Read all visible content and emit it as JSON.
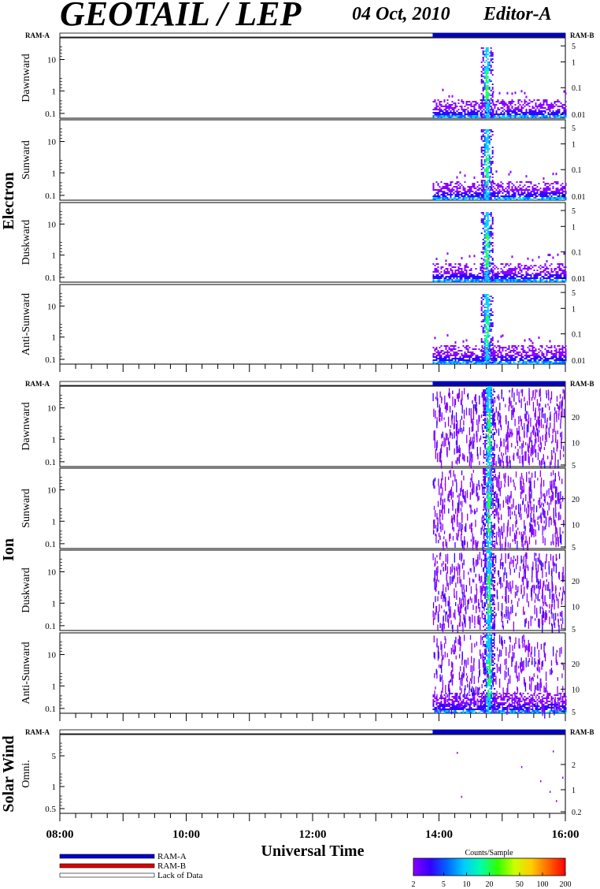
{
  "header": {
    "title": "GEOTAIL / LEP",
    "date": "04 Oct, 2010",
    "editor": "Editor-A"
  },
  "ram_labels": {
    "left": "RAM-A",
    "right": "RAM-B"
  },
  "groups": [
    {
      "label": "Electron"
    },
    {
      "label": "Ion"
    },
    {
      "label": "Solar Wind"
    }
  ],
  "legend": {
    "ram_a": "RAM-A",
    "ram_b": "RAM-B",
    "lack": "Lack of Data",
    "colorbar_title": "Counts/Sample",
    "colorbar_ticks": [
      "2",
      "5",
      "10",
      "20",
      "50",
      "100",
      "200"
    ]
  },
  "colors": {
    "ram_a": "#0000cc",
    "ram_b": "#dd0000",
    "lack": "#ffffff",
    "colormap": [
      "#8800ff",
      "#3300ff",
      "#0066ff",
      "#00ccff",
      "#00ffaa",
      "#33ff00",
      "#ccff00",
      "#ffcc00",
      "#ff6600",
      "#ff0000"
    ]
  },
  "chart_data": {
    "type": "heatmap",
    "xlabel": "Universal Time",
    "x_ticks": [
      "08:00",
      "10:00",
      "12:00",
      "14:00",
      "16:00"
    ],
    "x_range_hours": [
      8,
      16
    ],
    "data_start_hour": 13.9,
    "ram_b_start_hour": 13.9,
    "panels": [
      {
        "name": "Dawnward",
        "group": "Electron",
        "left_ticks": [
          "10",
          "1",
          "0.1"
        ],
        "right_ticks": [
          "5",
          "1",
          "0.1",
          "0.01"
        ],
        "burst_hour": 14.75,
        "noise": "band"
      },
      {
        "name": "Sunward",
        "group": "Electron",
        "left_ticks": [
          "10",
          "1",
          "0.1"
        ],
        "right_ticks": [
          "5",
          "1",
          "0.1",
          "0.01"
        ],
        "burst_hour": 14.75,
        "noise": "band"
      },
      {
        "name": "Duskward",
        "group": "Electron",
        "left_ticks": [
          "10",
          "1",
          "0.1"
        ],
        "right_ticks": [
          "5",
          "1",
          "0.1",
          "0.01"
        ],
        "burst_hour": 14.75,
        "noise": "band"
      },
      {
        "name": "Anti-Sunward",
        "group": "Electron",
        "left_ticks": [
          "10",
          "1",
          "0.1"
        ],
        "right_ticks": [
          "5",
          "1",
          "0.1",
          "0.01"
        ],
        "burst_hour": 14.75,
        "noise": "band"
      },
      {
        "name": "Dawnward",
        "group": "Ion",
        "left_ticks": [
          "10",
          "1",
          "0.1"
        ],
        "right_ticks": [
          "20",
          "10",
          "5"
        ],
        "burst_hour": 14.78,
        "noise": "sparse"
      },
      {
        "name": "Sunward",
        "group": "Ion",
        "left_ticks": [
          "10",
          "1",
          "0.1"
        ],
        "right_ticks": [
          "20",
          "10",
          "5"
        ],
        "burst_hour": 14.78,
        "noise": "sparse"
      },
      {
        "name": "Duskward",
        "group": "Ion",
        "left_ticks": [
          "10",
          "1",
          "0.1"
        ],
        "right_ticks": [
          "20",
          "10",
          "5"
        ],
        "burst_hour": 14.78,
        "noise": "sparse"
      },
      {
        "name": "Anti-Sunward",
        "group": "Ion",
        "left_ticks": [
          "10",
          "1",
          "0.1"
        ],
        "right_ticks": [
          "20",
          "10",
          "5"
        ],
        "burst_hour": 14.78,
        "noise": "sparse_band"
      },
      {
        "name": "Omni.",
        "group": "Solar Wind",
        "left_ticks": [
          "5",
          "1",
          "0.5"
        ],
        "right_ticks": [
          "2",
          "1",
          "0.2"
        ],
        "burst_hour": null,
        "noise": "dots"
      }
    ]
  }
}
